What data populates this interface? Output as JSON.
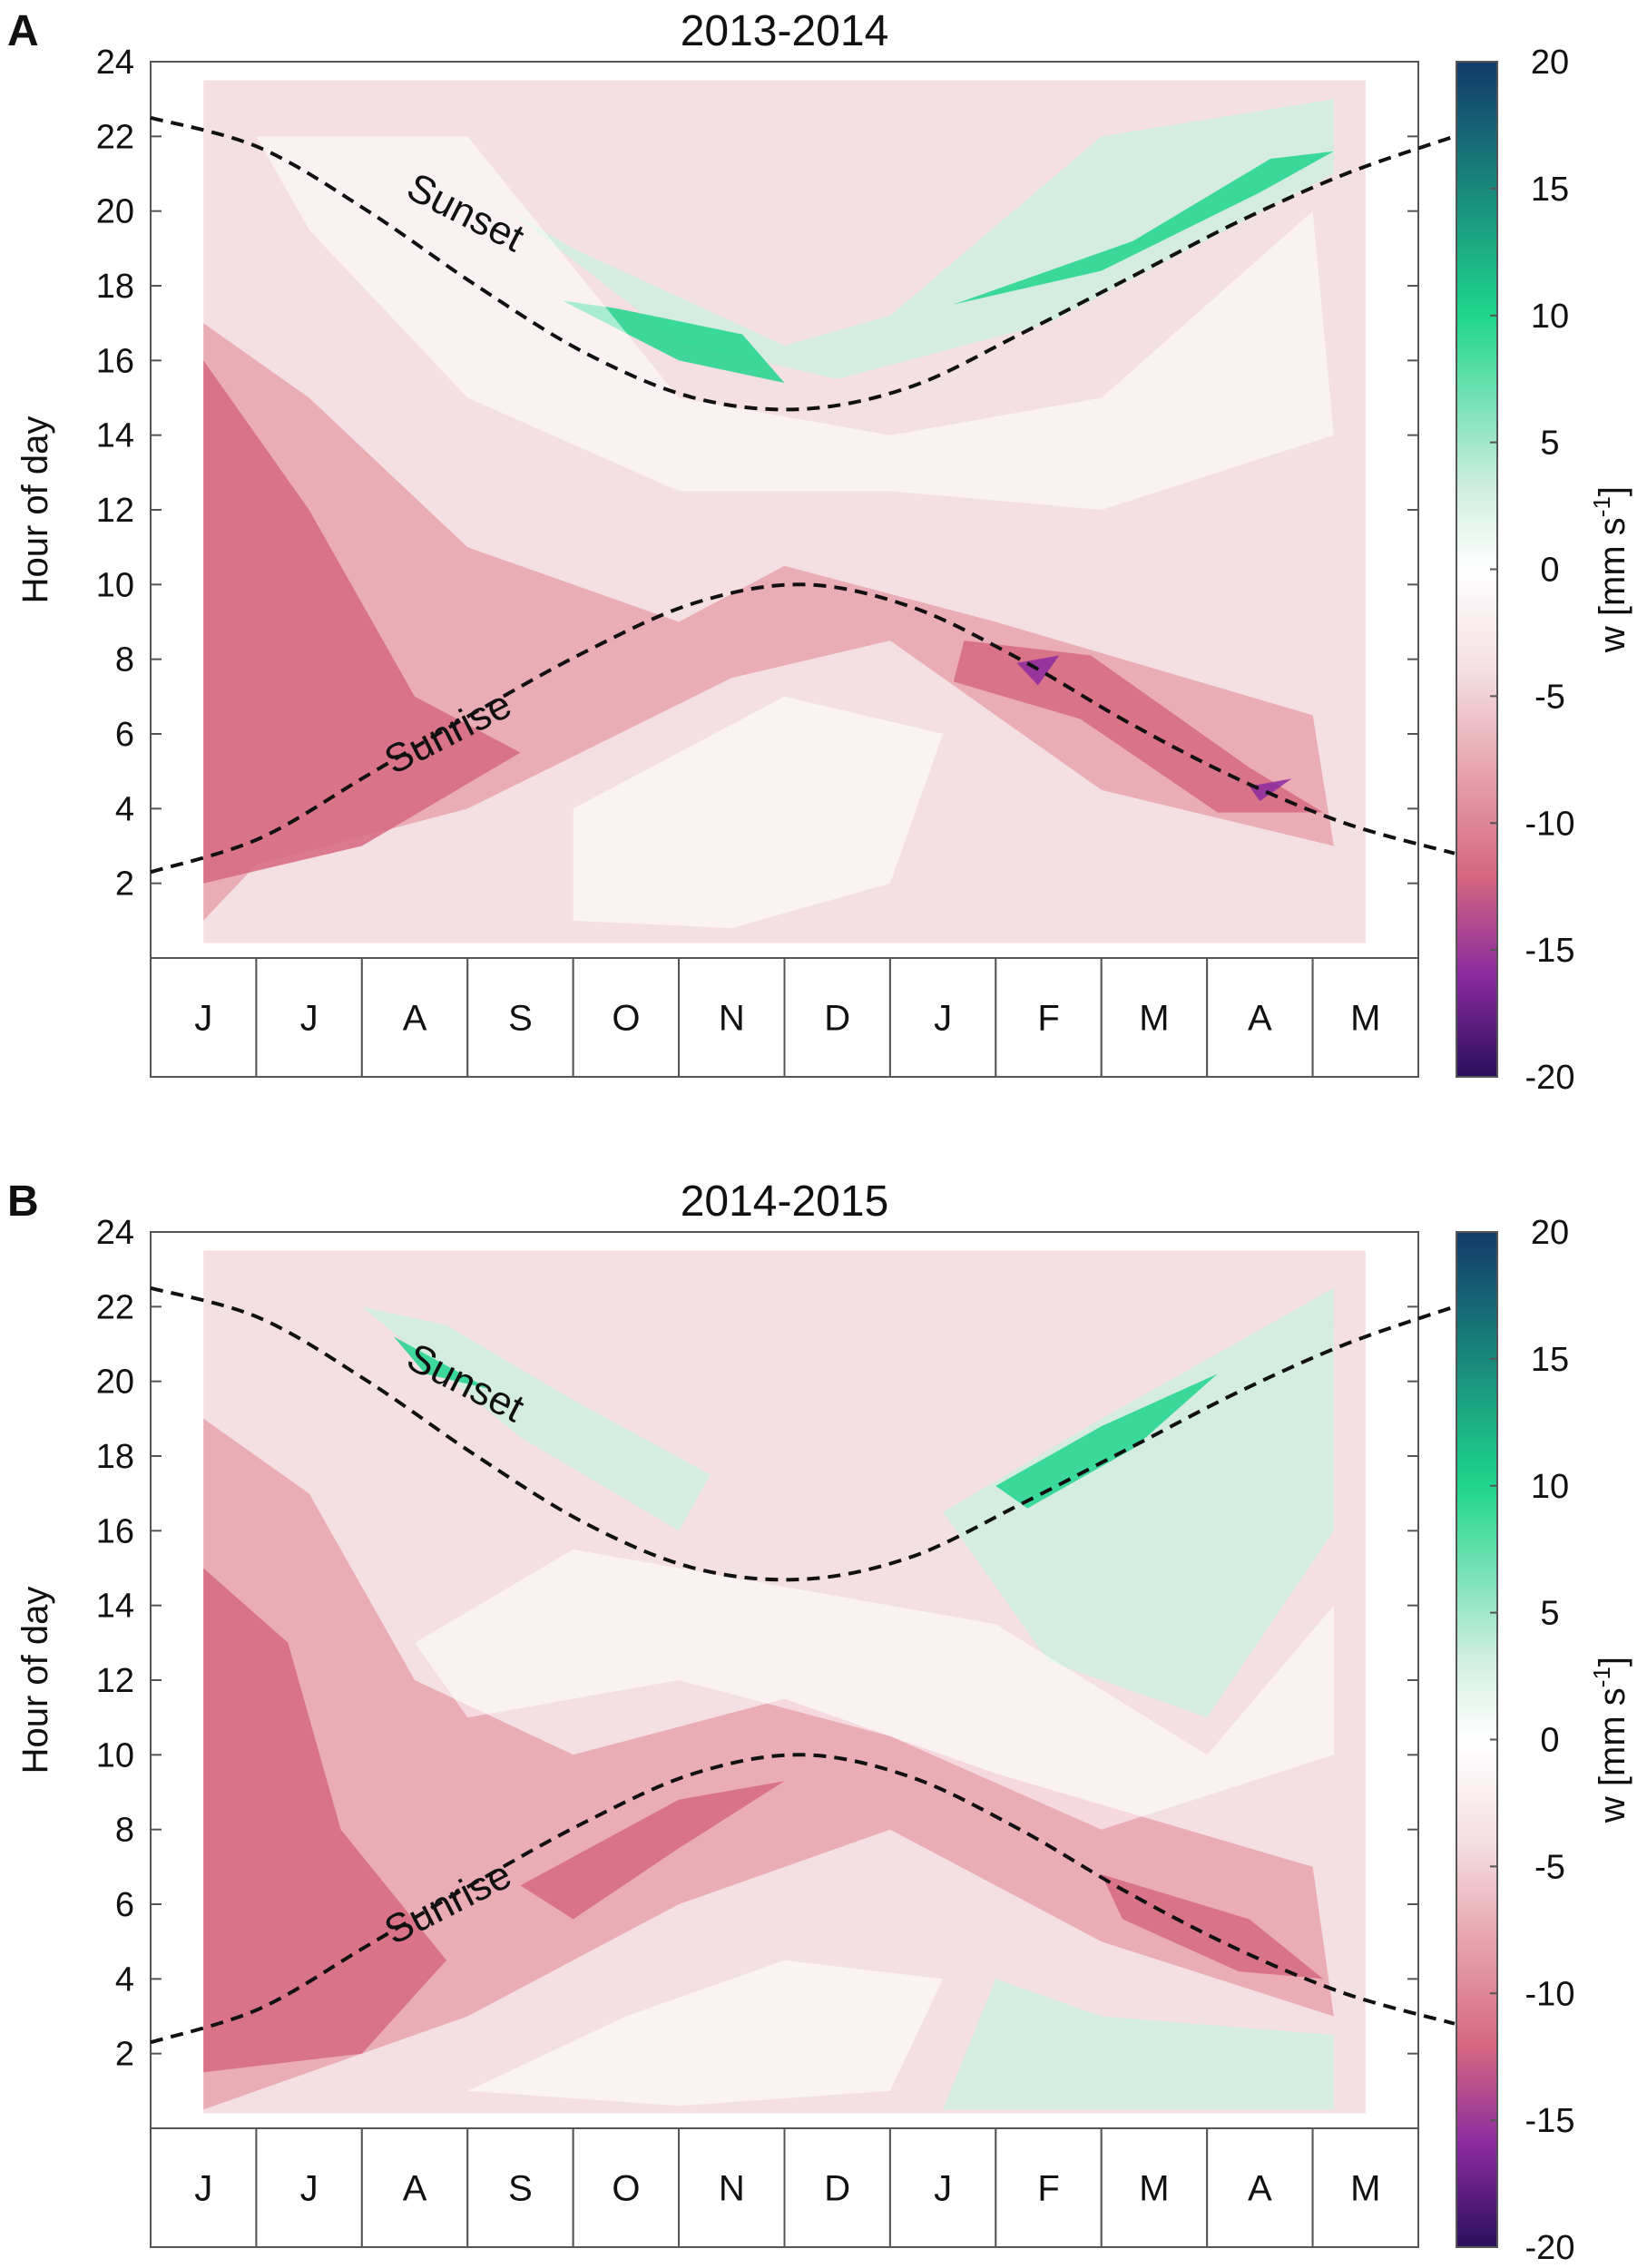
{
  "figure": {
    "panels": [
      "A",
      "B"
    ]
  },
  "colors": {
    "green_strong": "#1fd68c",
    "green_light": "#cfeedf",
    "pink_light": "#f4dfe2",
    "pink_mid": "#e7a3ad",
    "pink_strong": "#d6697f",
    "purple": "#8b2aa0",
    "teal_dark": "#123a6b",
    "curve": "#111111"
  },
  "chart_data": [
    {
      "type": "heatmap",
      "panel_letter": "A",
      "title": "2013-2014",
      "xlabel": "",
      "ylabel": "Hour of day",
      "x_categories": [
        "J",
        "J",
        "A",
        "S",
        "O",
        "N",
        "D",
        "J",
        "F",
        "M",
        "A",
        "M"
      ],
      "y_ticks": [
        2,
        4,
        6,
        8,
        10,
        12,
        14,
        16,
        18,
        20,
        22,
        24
      ],
      "ylim": [
        0,
        24
      ],
      "colorbar": {
        "label": "w [mm s",
        "label_sup": "-1",
        "label_close": "]",
        "ticks": [
          20,
          15,
          10,
          5,
          0,
          -5,
          -10,
          -15,
          -20
        ],
        "range": [
          -20,
          20
        ]
      },
      "curves": [
        {
          "name": "Sunset",
          "label": "Sunset",
          "style": "dashed",
          "x": [
            0,
            1,
            2,
            3,
            4,
            5,
            6,
            7,
            8,
            9,
            10,
            11,
            12
          ],
          "y": [
            22.5,
            21.7,
            20.0,
            18.0,
            16.2,
            15.0,
            14.7,
            15.3,
            16.7,
            18.2,
            19.7,
            21.0,
            22.0
          ]
        },
        {
          "name": "Sunrise",
          "label": "Sunrise",
          "style": "dashed",
          "x": [
            0,
            1,
            2,
            3,
            4,
            5,
            6,
            7,
            8,
            9,
            10,
            11,
            12
          ],
          "y": [
            2.3,
            3.2,
            4.9,
            6.6,
            8.2,
            9.5,
            10.0,
            9.4,
            8.0,
            6.3,
            4.8,
            3.6,
            2.8
          ]
        }
      ],
      "regions": [
        {
          "label": "green",
          "color_key": "green_light",
          "pts": [
            [
              3.4,
              20
            ],
            [
              5.0,
              16.5
            ],
            [
              6.5,
              15.5
            ],
            [
              8.5,
              17
            ],
            [
              11.2,
              21
            ],
            [
              11.2,
              23
            ],
            [
              9,
              22
            ],
            [
              7,
              17.2
            ],
            [
              6,
              16.4
            ],
            [
              4,
              19
            ]
          ]
        },
        {
          "label": "green",
          "color_key": "green_strong",
          "pts": [
            [
              3.9,
              17.6
            ],
            [
              5.0,
              16.0
            ],
            [
              6.0,
              15.4
            ],
            [
              5.6,
              16.7
            ],
            [
              4.4,
              17.4
            ]
          ]
        },
        {
          "label": "green",
          "color_key": "green_strong",
          "pts": [
            [
              7.6,
              17.5
            ],
            [
              9.0,
              18.4
            ],
            [
              10.5,
              20.5
            ],
            [
              11.2,
              21.6
            ],
            [
              10.6,
              21.4
            ],
            [
              9.3,
              19.2
            ],
            [
              8.0,
              17.9
            ]
          ]
        },
        {
          "label": "pink",
          "color_key": "pink_mid",
          "pts": [
            [
              0.5,
              17
            ],
            [
              1.5,
              15
            ],
            [
              3,
              11
            ],
            [
              5,
              9
            ],
            [
              6,
              10.5
            ],
            [
              8,
              9
            ],
            [
              11,
              6.5
            ],
            [
              11.2,
              3
            ],
            [
              9,
              4.5
            ],
            [
              7,
              8.5
            ],
            [
              5.5,
              7.5
            ],
            [
              3,
              4
            ],
            [
              1,
              2.5
            ],
            [
              0.5,
              1
            ]
          ]
        },
        {
          "label": "pink",
          "color_key": "pink_strong",
          "pts": [
            [
              0.5,
              16
            ],
            [
              1.5,
              12
            ],
            [
              2.5,
              7
            ],
            [
              3.5,
              5.5
            ],
            [
              2,
              3
            ],
            [
              0.5,
              2
            ]
          ]
        },
        {
          "label": "pink",
          "color_key": "pink_strong",
          "pts": [
            [
              7.7,
              8.5
            ],
            [
              8.9,
              8.1
            ],
            [
              10.4,
              5.1
            ],
            [
              11.1,
              3.9
            ],
            [
              10.1,
              3.9
            ],
            [
              8.8,
              6.4
            ],
            [
              7.6,
              7.4
            ]
          ]
        },
        {
          "label": "purple",
          "color_key": "purple",
          "pts": [
            [
              8.2,
              7.9
            ],
            [
              8.6,
              8.1
            ],
            [
              8.4,
              7.3
            ]
          ]
        },
        {
          "label": "purple",
          "color_key": "purple",
          "pts": [
            [
              10.4,
              4.6
            ],
            [
              10.8,
              4.8
            ],
            [
              10.5,
              4.2
            ]
          ]
        }
      ]
    },
    {
      "type": "heatmap",
      "panel_letter": "B",
      "title": "2014-2015",
      "xlabel": "",
      "ylabel": "Hour of day",
      "x_categories": [
        "J",
        "J",
        "A",
        "S",
        "O",
        "N",
        "D",
        "J",
        "F",
        "M",
        "A",
        "M"
      ],
      "y_ticks": [
        2,
        4,
        6,
        8,
        10,
        12,
        14,
        16,
        18,
        20,
        22,
        24
      ],
      "ylim": [
        0,
        24
      ],
      "colorbar": {
        "label": "w [mm s",
        "label_sup": "-1",
        "label_close": "]",
        "ticks": [
          20,
          15,
          10,
          5,
          0,
          -5,
          -10,
          -15,
          -20
        ],
        "range": [
          -20,
          20
        ]
      },
      "curves": [
        {
          "name": "Sunset",
          "label": "Sunset",
          "style": "dashed",
          "x": [
            0,
            1,
            2,
            3,
            4,
            5,
            6,
            7,
            8,
            9,
            10,
            11,
            12
          ],
          "y": [
            22.5,
            21.7,
            20.0,
            18.0,
            16.2,
            15.0,
            14.7,
            15.3,
            16.7,
            18.2,
            19.7,
            21.0,
            22.0
          ]
        },
        {
          "name": "Sunrise",
          "label": "Sunrise",
          "style": "dashed",
          "x": [
            0,
            1,
            2,
            3,
            4,
            5,
            6,
            7,
            8,
            9,
            10,
            11,
            12
          ],
          "y": [
            2.3,
            3.2,
            4.9,
            6.6,
            8.2,
            9.5,
            10.0,
            9.4,
            8.0,
            6.3,
            4.8,
            3.6,
            2.8
          ]
        }
      ],
      "regions": [
        {
          "label": "green",
          "color_key": "green_light",
          "pts": [
            [
              2.0,
              22
            ],
            [
              3.5,
              18.5
            ],
            [
              5.0,
              16
            ],
            [
              5.3,
              17.5
            ],
            [
              4,
              19.5
            ],
            [
              2.8,
              21.5
            ]
          ]
        },
        {
          "label": "green",
          "color_key": "green_light",
          "pts": [
            [
              7.5,
              16.5
            ],
            [
              9,
              19
            ],
            [
              11.2,
              22.5
            ],
            [
              11.2,
              16
            ],
            [
              10,
              11
            ],
            [
              8.5,
              12.5
            ]
          ]
        },
        {
          "label": "green",
          "color_key": "green_strong",
          "pts": [
            [
              2.3,
              21.2
            ],
            [
              3.2,
              19.8
            ],
            [
              2.6,
              20.2
            ]
          ]
        },
        {
          "label": "green",
          "color_key": "green_strong",
          "pts": [
            [
              8.0,
              17.2
            ],
            [
              9.0,
              18.8
            ],
            [
              10.1,
              20.2
            ],
            [
              9.3,
              18.2
            ],
            [
              8.3,
              16.6
            ]
          ]
        },
        {
          "label": "green",
          "color_key": "green_light",
          "pts": [
            [
              7.5,
              0.5
            ],
            [
              11.2,
              0.5
            ],
            [
              11.2,
              2.5
            ],
            [
              9,
              3
            ],
            [
              8,
              4
            ]
          ]
        },
        {
          "label": "pink",
          "color_key": "pink_mid",
          "pts": [
            [
              0.5,
              19
            ],
            [
              1.5,
              17
            ],
            [
              2.5,
              12
            ],
            [
              4,
              10
            ],
            [
              6,
              11.5
            ],
            [
              8,
              9.5
            ],
            [
              11,
              7
            ],
            [
              11.2,
              3
            ],
            [
              9,
              5
            ],
            [
              7,
              8
            ],
            [
              5,
              6
            ],
            [
              3,
              3
            ],
            [
              1,
              1
            ],
            [
              0.5,
              0.5
            ]
          ]
        },
        {
          "label": "pink",
          "color_key": "pink_strong",
          "pts": [
            [
              0.5,
              15
            ],
            [
              1.3,
              13
            ],
            [
              1.8,
              8
            ],
            [
              2.8,
              4.5
            ],
            [
              2,
              2
            ],
            [
              0.5,
              1.5
            ]
          ]
        },
        {
          "label": "pink",
          "color_key": "pink_strong",
          "pts": [
            [
              3.5,
              6.5
            ],
            [
              5.0,
              8.8
            ],
            [
              6.0,
              9.3
            ],
            [
              5.0,
              7.5
            ],
            [
              4.0,
              5.6
            ]
          ]
        },
        {
          "label": "pink",
          "color_key": "pink_strong",
          "pts": [
            [
              9.0,
              6.8
            ],
            [
              10.4,
              5.6
            ],
            [
              11.1,
              4.0
            ],
            [
              10.3,
              4.2
            ],
            [
              9.2,
              5.6
            ]
          ]
        }
      ]
    }
  ]
}
